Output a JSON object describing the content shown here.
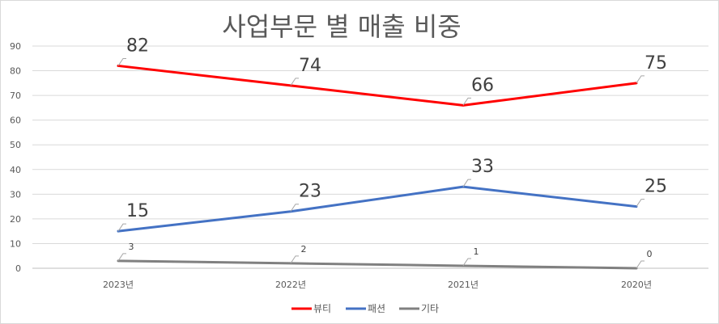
{
  "chart_data": {
    "type": "line",
    "title": "사업부문 별 매출 비중",
    "categories": [
      "2023년",
      "2022년",
      "2021년",
      "2020년"
    ],
    "ylim": [
      0,
      90
    ],
    "yticks": [
      0,
      10,
      20,
      30,
      40,
      50,
      60,
      70,
      80,
      90
    ],
    "grid": true,
    "legend_position": "bottom",
    "series": [
      {
        "name": "뷰티",
        "color": "#ff0000",
        "values": [
          82,
          74,
          66,
          75
        ],
        "label_size": "large"
      },
      {
        "name": "패션",
        "color": "#4472c4",
        "values": [
          15,
          23,
          33,
          25
        ],
        "label_size": "large"
      },
      {
        "name": "기타",
        "color": "#808080",
        "values": [
          3,
          2,
          1,
          0
        ],
        "label_size": "small"
      }
    ]
  }
}
